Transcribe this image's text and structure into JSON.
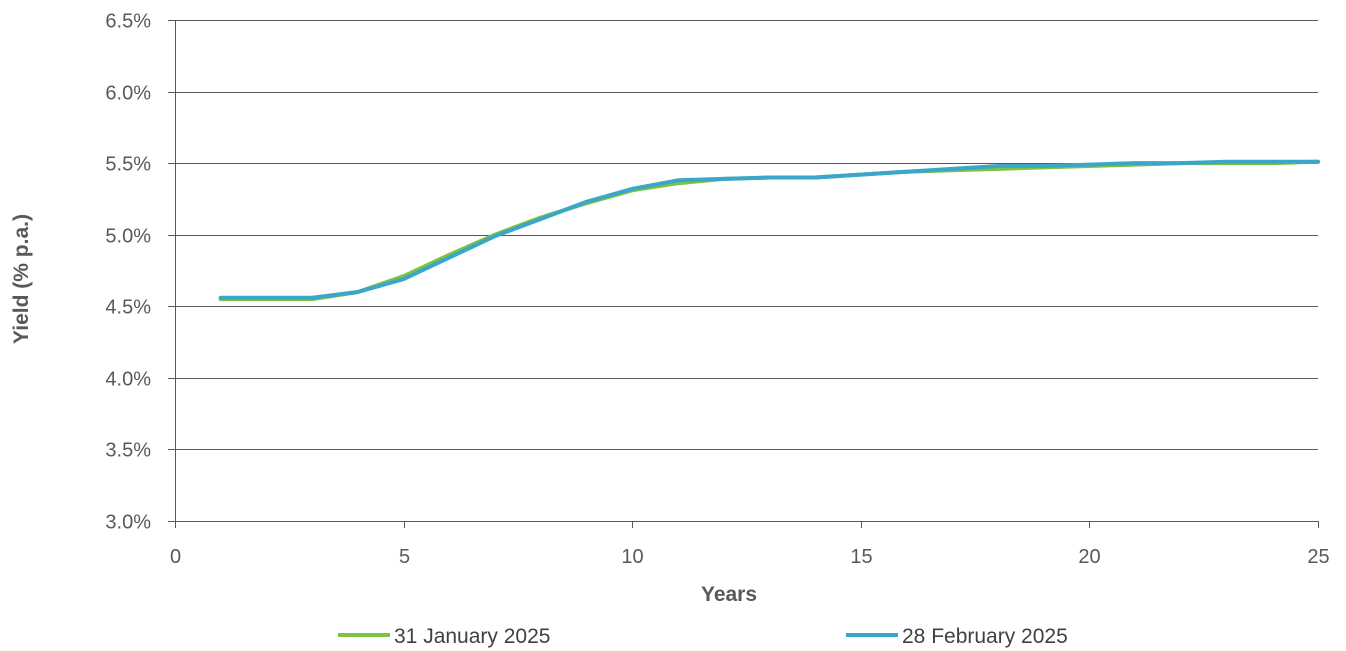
{
  "chart_data": {
    "type": "line",
    "title": "",
    "xlabel": "Years",
    "ylabel": "Yield (% p.a.)",
    "xlim": [
      0,
      25
    ],
    "ylim": [
      3.0,
      6.5
    ],
    "x_ticks": [
      0,
      5,
      10,
      15,
      20,
      25
    ],
    "x_tick_labels": [
      "0",
      "5",
      "10",
      "15",
      "20",
      "25"
    ],
    "y_ticks": [
      3.0,
      3.5,
      4.0,
      4.5,
      5.0,
      5.5,
      6.0,
      6.5
    ],
    "y_tick_labels": [
      "3.0%",
      "3.5%",
      "4.0%",
      "4.5%",
      "5.0%",
      "5.5%",
      "6.0%",
      "6.5%"
    ],
    "grid": "horizontal",
    "legend_position": "bottom",
    "x": [
      1,
      2,
      3,
      4,
      5,
      6,
      7,
      8,
      9,
      10,
      11,
      12,
      13,
      14,
      15,
      16,
      17,
      18,
      19,
      20,
      21,
      22,
      23,
      24,
      25
    ],
    "series": [
      {
        "name": "31 January 2025",
        "color": "#7dc241",
        "values": [
          4.55,
          4.55,
          4.55,
          4.6,
          4.71,
          4.86,
          5.0,
          5.12,
          5.22,
          5.31,
          5.36,
          5.39,
          5.4,
          5.4,
          5.42,
          5.44,
          5.45,
          5.46,
          5.47,
          5.48,
          5.49,
          5.5,
          5.5,
          5.5,
          5.51
        ]
      },
      {
        "name": "28 February 2025",
        "color": "#3aa6c8",
        "values": [
          4.56,
          4.56,
          4.56,
          4.6,
          4.69,
          4.84,
          4.99,
          5.11,
          5.23,
          5.32,
          5.38,
          5.39,
          5.4,
          5.4,
          5.42,
          5.44,
          5.46,
          5.48,
          5.48,
          5.49,
          5.5,
          5.5,
          5.51,
          5.51,
          5.51
        ]
      }
    ]
  }
}
